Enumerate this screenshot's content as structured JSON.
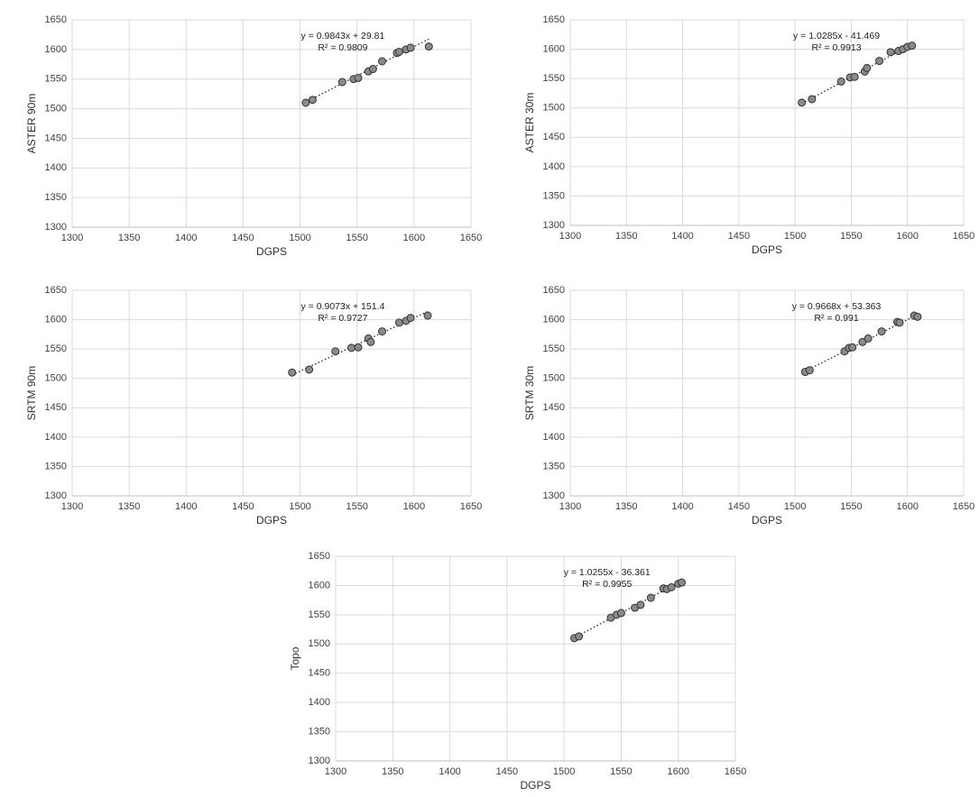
{
  "chart_data": [
    {
      "type": "scatter",
      "x_label": "DGPS",
      "y_label": "ASTER 90m",
      "equation": "y = 0.9843x + 29.81",
      "r_squared": "R² = 0.9809",
      "trend": {
        "slope": 0.9843,
        "intercept": 29.81
      },
      "color": "#8a8a8a",
      "grid": true,
      "x": [
        1505,
        1511,
        1537,
        1547,
        1551,
        1560,
        1564,
        1572,
        1585,
        1587,
        1593,
        1597,
        1613
      ],
      "values": [
        1510,
        1515,
        1545,
        1550,
        1552,
        1563,
        1567,
        1580,
        1594,
        1596,
        1600,
        1603,
        1605
      ],
      "xlim": [
        1300,
        1650
      ],
      "xticks": [
        1300,
        1350,
        1400,
        1450,
        1500,
        1550,
        1600,
        1650
      ],
      "ylim": [
        1300,
        1650
      ],
      "yticks": [
        1300,
        1350,
        1400,
        1450,
        1500,
        1550,
        1600,
        1650
      ]
    },
    {
      "type": "scatter",
      "x_label": "DGPS",
      "y_label": "ASTER 30m",
      "equation": "y = 1.0285x - 41.469",
      "r_squared": "R² = 0.9913",
      "trend": {
        "slope": 1.0285,
        "intercept": -41.469
      },
      "color": "#8a8a8a",
      "grid": true,
      "x": [
        1506,
        1515,
        1541,
        1549,
        1553,
        1562,
        1564,
        1575,
        1585,
        1592,
        1596,
        1600,
        1604
      ],
      "values": [
        1509,
        1515,
        1545,
        1552,
        1553,
        1562,
        1568,
        1580,
        1595,
        1597,
        1600,
        1604,
        1606
      ],
      "xlim": [
        1300,
        1650
      ],
      "xticks": [
        1300,
        1350,
        1400,
        1450,
        1500,
        1550,
        1600,
        1650
      ],
      "ylim": [
        1300,
        1650
      ],
      "yticks": [
        1300,
        1350,
        1400,
        1450,
        1500,
        1550,
        1600,
        1650
      ]
    },
    {
      "type": "scatter",
      "x_label": "DGPS",
      "y_label": "SRTM 90m",
      "equation": "y = 0.9073x + 151.4",
      "r_squared": "R² = 0.9727",
      "trend": {
        "slope": 0.9073,
        "intercept": 151.4
      },
      "color": "#8a8a8a",
      "grid": true,
      "x": [
        1493,
        1508,
        1531,
        1545,
        1551,
        1560,
        1562,
        1572,
        1587,
        1593,
        1597,
        1612
      ],
      "values": [
        1510,
        1515,
        1546,
        1552,
        1553,
        1568,
        1562,
        1580,
        1595,
        1598,
        1603,
        1607
      ],
      "xlim": [
        1300,
        1650
      ],
      "xticks": [
        1300,
        1350,
        1400,
        1450,
        1500,
        1550,
        1600,
        1650
      ],
      "ylim": [
        1300,
        1650
      ],
      "yticks": [
        1300,
        1350,
        1400,
        1450,
        1500,
        1550,
        1600,
        1650
      ]
    },
    {
      "type": "scatter",
      "x_label": "DGPS",
      "y_label": "SRTM 30m",
      "equation": "y = 0.9668x + 53.363",
      "r_squared": "R² = 0.991",
      "trend": {
        "slope": 0.9668,
        "intercept": 53.363
      },
      "color": "#8a8a8a",
      "grid": true,
      "x": [
        1509,
        1513,
        1544,
        1548,
        1551,
        1560,
        1565,
        1577,
        1591,
        1593,
        1606,
        1609
      ],
      "values": [
        1511,
        1514,
        1546,
        1552,
        1553,
        1562,
        1568,
        1580,
        1596,
        1595,
        1607,
        1605
      ],
      "xlim": [
        1300,
        1650
      ],
      "xticks": [
        1300,
        1350,
        1400,
        1450,
        1500,
        1550,
        1600,
        1650
      ],
      "ylim": [
        1300,
        1650
      ],
      "yticks": [
        1300,
        1350,
        1400,
        1450,
        1500,
        1550,
        1600,
        1650
      ]
    },
    {
      "type": "scatter",
      "x_label": "DGPS",
      "y_label": "Topo",
      "equation": "y = 1.0255x - 36.361",
      "r_squared": "R² = 0.9955",
      "trend": {
        "slope": 1.0255,
        "intercept": -36.361
      },
      "color": "#8a8a8a",
      "grid": true,
      "x": [
        1509,
        1513,
        1541,
        1546,
        1550,
        1562,
        1567,
        1576,
        1587,
        1590,
        1594,
        1600,
        1603
      ],
      "values": [
        1510,
        1513,
        1545,
        1550,
        1553,
        1562,
        1567,
        1579,
        1595,
        1594,
        1597,
        1603,
        1605
      ],
      "xlim": [
        1300,
        1650
      ],
      "xticks": [
        1300,
        1350,
        1400,
        1450,
        1500,
        1550,
        1600,
        1650
      ],
      "ylim": [
        1300,
        1650
      ],
      "yticks": [
        1300,
        1350,
        1400,
        1450,
        1500,
        1550,
        1600,
        1650
      ]
    }
  ]
}
